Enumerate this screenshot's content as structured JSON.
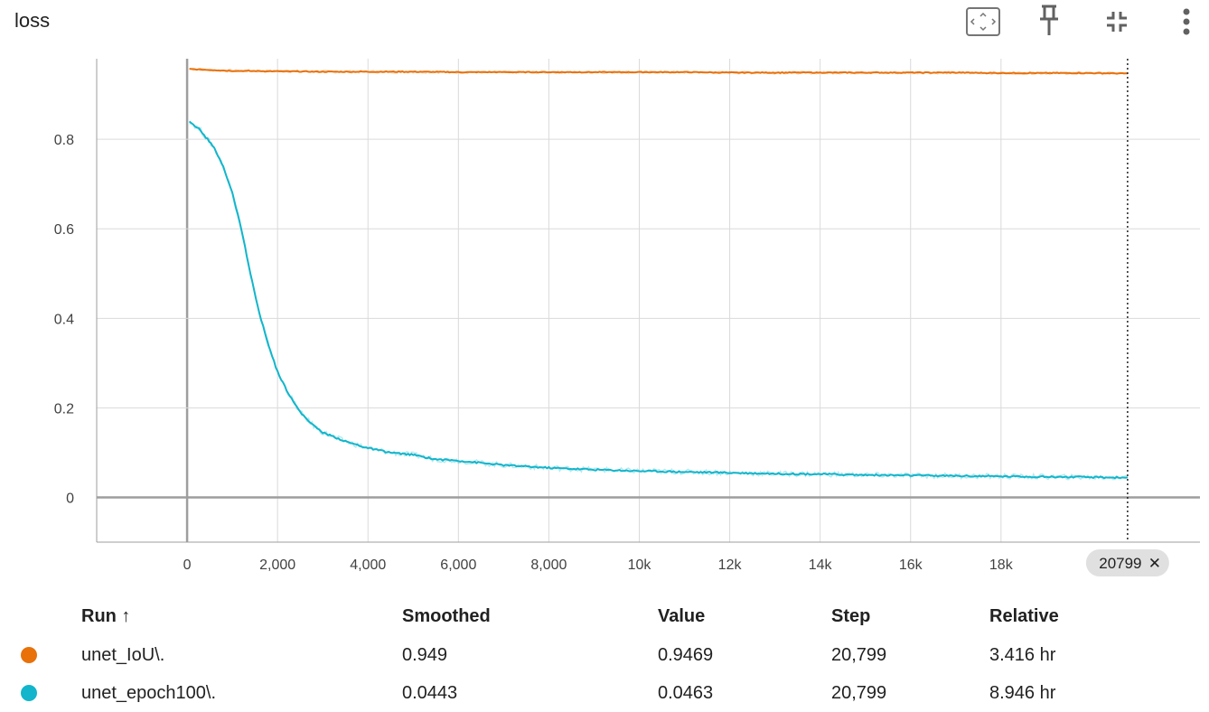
{
  "header": {
    "title": "loss",
    "icons": [
      "fit-domain-icon",
      "pin-icon",
      "collapse-icon",
      "more-vert-icon"
    ]
  },
  "chart_data": {
    "type": "line",
    "title": "loss",
    "xlabel": "",
    "ylabel": "",
    "xlim": [
      -2000,
      22400
    ],
    "ylim": [
      -0.1,
      0.98
    ],
    "x_ticks": [
      "0",
      "2,000",
      "4,000",
      "6,000",
      "8,000",
      "10k",
      "12k",
      "14k",
      "16k",
      "18k"
    ],
    "x_tick_values": [
      0,
      2000,
      4000,
      6000,
      8000,
      10000,
      12000,
      14000,
      16000,
      18000
    ],
    "y_ticks": [
      "0",
      "0.2",
      "0.4",
      "0.6",
      "0.8"
    ],
    "y_tick_values": [
      0,
      0.2,
      0.4,
      0.6,
      0.8
    ],
    "grid": true,
    "hover_step_label": "20799",
    "hover_step": 20799,
    "series": [
      {
        "name": "unet_IoU\\.",
        "color": "#e8710a",
        "x": [
          50,
          500,
          1000,
          2000,
          3000,
          4000,
          5000,
          6000,
          7000,
          8000,
          9000,
          10000,
          11000,
          12000,
          13000,
          14000,
          15000,
          16000,
          17000,
          18000,
          19000,
          20000,
          20799
        ],
        "values": [
          0.957,
          0.955,
          0.953,
          0.952,
          0.951,
          0.951,
          0.951,
          0.95,
          0.95,
          0.95,
          0.95,
          0.95,
          0.95,
          0.949,
          0.949,
          0.949,
          0.949,
          0.949,
          0.949,
          0.948,
          0.948,
          0.948,
          0.947
        ]
      },
      {
        "name": "unet_epoch100\\.",
        "color": "#12b5cb",
        "x": [
          50,
          300,
          600,
          800,
          1000,
          1200,
          1400,
          1600,
          1800,
          2000,
          2200,
          2500,
          2800,
          3000,
          3500,
          4000,
          4500,
          5000,
          5500,
          6000,
          7000,
          8000,
          9000,
          10000,
          11000,
          12000,
          13000,
          14000,
          15000,
          16000,
          17000,
          18000,
          19000,
          20000,
          20799
        ],
        "values": [
          0.84,
          0.82,
          0.78,
          0.74,
          0.68,
          0.6,
          0.5,
          0.41,
          0.34,
          0.28,
          0.24,
          0.19,
          0.16,
          0.145,
          0.125,
          0.11,
          0.1,
          0.095,
          0.085,
          0.082,
          0.072,
          0.066,
          0.062,
          0.059,
          0.057,
          0.055,
          0.053,
          0.052,
          0.05,
          0.049,
          0.048,
          0.047,
          0.046,
          0.045,
          0.0443
        ]
      }
    ]
  },
  "table": {
    "headers": [
      "Run ↑",
      "Smoothed",
      "Value",
      "Step",
      "Relative"
    ],
    "rows": [
      {
        "color": "#e8710a",
        "run": "unet_IoU\\.",
        "smoothed": "0.949",
        "value": "0.9469",
        "step": "20,799",
        "relative": "3.416 hr"
      },
      {
        "color": "#12b5cb",
        "run": "unet_epoch100\\.",
        "smoothed": "0.0443",
        "value": "0.0463",
        "step": "20,799",
        "relative": "8.946 hr"
      }
    ]
  }
}
